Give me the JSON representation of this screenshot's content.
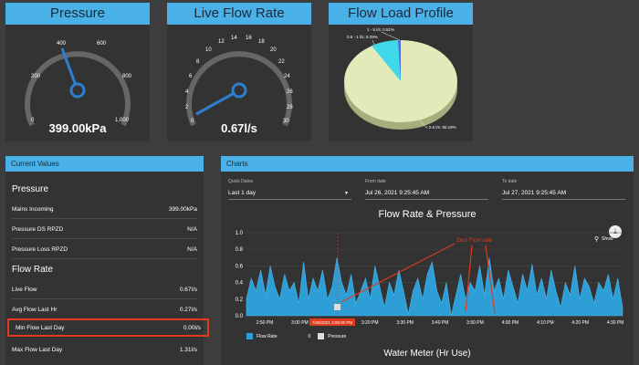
{
  "pressure": {
    "title": "Pressure",
    "value_label": "399.00kPa",
    "ticks": [
      "0",
      "200",
      "400",
      "600",
      "800",
      "1,000"
    ]
  },
  "flow_rate": {
    "title": "Live Flow Rate",
    "value_label": "0.67l/s",
    "ticks": [
      "0",
      "2",
      "4",
      "6",
      "8",
      "10",
      "12",
      "14",
      "16",
      "18",
      "20",
      "22",
      "24",
      "26",
      "28",
      "30"
    ]
  },
  "flow_load": {
    "title": "Flow Load Profile",
    "slices": [
      {
        "label": "1 - 5 l/s: 0.51%",
        "value": 0.51,
        "color": "#5b6bd6"
      },
      {
        "label": "0.5 - 1 l/s: 9.29%",
        "value": 9.29,
        "color": "#3fd8e8"
      },
      {
        "label": "< 0.5 l/s: 90.19%",
        "value": 90.19,
        "color": "#e3e9b8"
      }
    ]
  },
  "current_values": {
    "header": "Current Values",
    "pressure_heading": "Pressure",
    "pressure_rows": [
      {
        "label": "Mains Incoming",
        "value": "399.00kPa"
      },
      {
        "label": "Pressure DS RPZD",
        "value": "N/A"
      },
      {
        "label": "Pressure Loss RPZD",
        "value": "N/A"
      }
    ],
    "flow_heading": "Flow Rate",
    "flow_rows": [
      {
        "label": "Live Flow",
        "value": "0.67l/s"
      },
      {
        "label": "Avg Flow Last Hr",
        "value": "0.27l/s"
      },
      {
        "label": "Min Flow Last Day",
        "value": "0.00l/s"
      },
      {
        "label": "Max Flow Last Day",
        "value": "1.31l/s"
      }
    ]
  },
  "charts": {
    "header": "Charts",
    "quick_dates_label": "Quick Dates",
    "quick_dates_value": "Last 1 day",
    "from_label": "From date",
    "from_value": "Jul 26, 2021 9:25:45 AM",
    "to_label": "To date",
    "to_value": "Jul 27, 2021 9:25:45 AM",
    "chart_title": "Flow Rate & Pressure",
    "annotation": "Zero Flow rate",
    "marker_label": "7/26/2021 3:08:30 PM",
    "show_label": "Show",
    "second_title": "Water Meter (Hr Use)",
    "legend": [
      {
        "name": "Flow Rate",
        "color": "#2e9fd6"
      },
      {
        "name": "Pressure",
        "color": "#dddddd"
      }
    ],
    "legend_extra": "0"
  },
  "chart_data": {
    "type": "area",
    "title": "Flow Rate & Pressure",
    "y_ticks": [
      "1.0",
      "0.8",
      "0.6",
      "0.4",
      "0.2",
      "0.0"
    ],
    "ylim": [
      0,
      1.0
    ],
    "x_ticks": [
      "2:50 PM",
      "3:00 PM",
      "3:10 PM",
      "3:20 PM",
      "3:30 PM",
      "3:40 PM",
      "3:50 PM",
      "4:00 PM",
      "4:10 PM",
      "4:20 PM",
      "4:30 PM"
    ],
    "series": [
      {
        "name": "Flow Rate",
        "values": [
          0.2,
          0.45,
          0.3,
          0.55,
          0.25,
          0.6,
          0.35,
          0.2,
          0.5,
          0.3,
          0.4,
          0.15,
          0.65,
          0.2,
          0.45,
          0.3,
          0.55,
          0.2,
          0.35,
          0.7,
          0.4,
          0.25,
          0.5,
          0.15,
          0.3,
          0.45,
          0.2,
          0.6,
          0.35,
          0.1,
          0.4,
          0.25,
          0.55,
          0.3,
          0.02,
          0.3,
          0.45,
          0.2,
          0.5,
          0.65,
          0.3,
          0.15,
          0.4,
          0.0,
          0.25,
          0.5,
          0.2,
          0.4,
          0.3,
          0.6,
          0.25,
          0.7,
          0.3,
          0.45,
          0.2,
          0.55,
          0.35,
          0.15,
          0.5,
          0.3,
          0.62,
          0.25,
          0.45,
          0.2,
          0.55,
          0.3,
          0.1,
          0.4,
          0.25,
          0.6,
          0.2,
          0.45,
          0.35,
          0.15,
          0.4,
          0.3,
          0.5,
          0.2,
          0.45,
          0.1
        ]
      }
    ]
  }
}
